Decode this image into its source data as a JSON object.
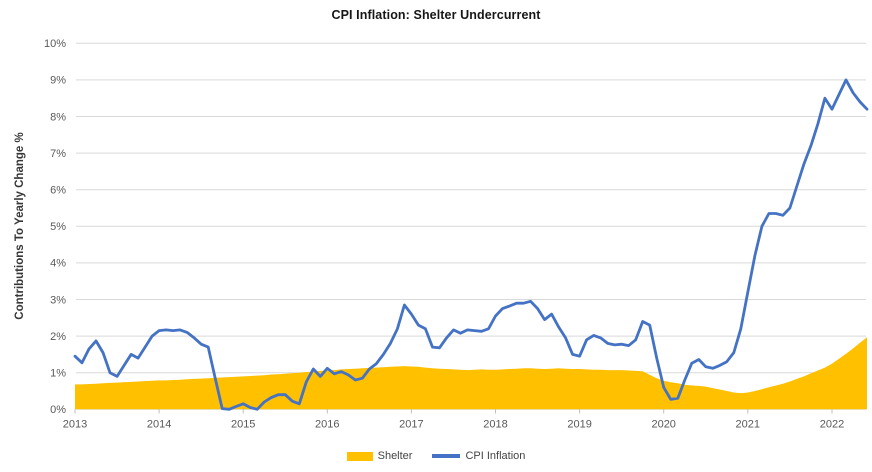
{
  "chart_data": {
    "type": "combo",
    "title": "CPI Inflation: Shelter Undercurrent",
    "ylabel": "Contributions To Yearly Change %",
    "xlabel": "",
    "x_tick_labels": [
      "2013",
      "2014",
      "2015",
      "2016",
      "2017",
      "2018",
      "2019",
      "2020",
      "2021",
      "2022"
    ],
    "points_per_year": 12,
    "x_frequency": "monthly",
    "y_tick_labels": [
      "0%",
      "1%",
      "2%",
      "3%",
      "4%",
      "5%",
      "6%",
      "7%",
      "8%",
      "9%",
      "10%"
    ],
    "ylim": [
      0,
      10
    ],
    "grid": true,
    "legend_position": "bottom",
    "colors": {
      "gridline": "#D9D9D9",
      "axis_text": "#595959"
    },
    "series": [
      {
        "name": "Shelter",
        "type": "area",
        "color": "#FFC000",
        "values": [
          0.68,
          0.68,
          0.69,
          0.7,
          0.71,
          0.72,
          0.73,
          0.74,
          0.75,
          0.76,
          0.77,
          0.78,
          0.79,
          0.79,
          0.8,
          0.81,
          0.82,
          0.83,
          0.84,
          0.85,
          0.86,
          0.87,
          0.88,
          0.89,
          0.9,
          0.91,
          0.92,
          0.93,
          0.95,
          0.96,
          0.97,
          0.99,
          1.0,
          1.02,
          1.03,
          1.05,
          1.06,
          1.07,
          1.09,
          1.1,
          1.11,
          1.12,
          1.13,
          1.14,
          1.15,
          1.16,
          1.17,
          1.18,
          1.17,
          1.16,
          1.14,
          1.12,
          1.11,
          1.1,
          1.09,
          1.08,
          1.07,
          1.08,
          1.09,
          1.08,
          1.08,
          1.09,
          1.1,
          1.11,
          1.12,
          1.12,
          1.11,
          1.1,
          1.11,
          1.12,
          1.11,
          1.1,
          1.1,
          1.09,
          1.08,
          1.08,
          1.07,
          1.07,
          1.07,
          1.06,
          1.05,
          1.04,
          0.94,
          0.85,
          0.78,
          0.74,
          0.71,
          0.67,
          0.65,
          0.64,
          0.62,
          0.58,
          0.54,
          0.5,
          0.46,
          0.44,
          0.46,
          0.5,
          0.55,
          0.6,
          0.65,
          0.7,
          0.76,
          0.83,
          0.9,
          0.98,
          1.06,
          1.14,
          1.25,
          1.38,
          1.52,
          1.66,
          1.82,
          1.97
        ]
      },
      {
        "name": "CPI Inflation",
        "type": "line",
        "color": "#4472C4",
        "values": [
          1.45,
          1.27,
          1.65,
          1.87,
          1.55,
          1.0,
          0.9,
          1.2,
          1.5,
          1.4,
          1.7,
          2.0,
          2.15,
          2.17,
          2.15,
          2.17,
          2.1,
          1.95,
          1.78,
          1.7,
          0.85,
          0.02,
          0.0,
          0.08,
          0.15,
          0.05,
          0.0,
          0.2,
          0.32,
          0.4,
          0.4,
          0.22,
          0.15,
          0.75,
          1.1,
          0.9,
          1.12,
          0.97,
          1.03,
          0.94,
          0.8,
          0.85,
          1.1,
          1.25,
          1.5,
          1.8,
          2.2,
          2.85,
          2.6,
          2.3,
          2.2,
          1.7,
          1.68,
          1.95,
          2.17,
          2.08,
          2.17,
          2.15,
          2.13,
          2.2,
          2.55,
          2.75,
          2.82,
          2.9,
          2.9,
          2.95,
          2.75,
          2.45,
          2.6,
          2.25,
          1.95,
          1.5,
          1.45,
          1.9,
          2.02,
          1.95,
          1.8,
          1.76,
          1.78,
          1.74,
          1.9,
          2.4,
          2.3,
          1.4,
          0.6,
          0.27,
          0.3,
          0.8,
          1.26,
          1.36,
          1.16,
          1.12,
          1.2,
          1.3,
          1.55,
          2.2,
          3.2,
          4.2,
          5.0,
          5.35,
          5.35,
          5.3,
          5.5,
          6.1,
          6.7,
          7.2,
          7.8,
          8.5,
          8.2,
          8.6,
          9.0,
          8.65,
          8.4,
          8.2
        ]
      }
    ]
  }
}
